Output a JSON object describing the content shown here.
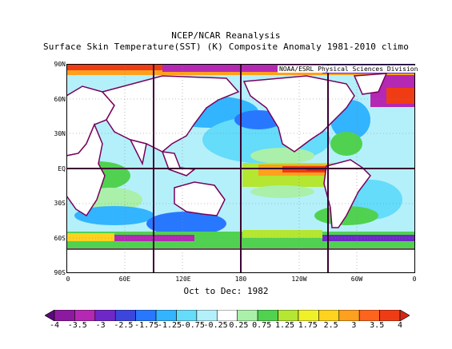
{
  "title_line1": "NCEP/NCAR Reanalysis",
  "title_line2": "Surface Skin Temperature(SST) (K) Composite Anomaly 1981-2010 climo",
  "credit": "NOAA/ESRL Physical Sciences Division",
  "period": "Oct to Dec: 1982",
  "lat_labels": [
    "90N",
    "60N",
    "30N",
    "EQ",
    "30S",
    "60S",
    "90S"
  ],
  "lon_labels": [
    "0",
    "60E",
    "120E",
    "180",
    "120W",
    "60W",
    "0"
  ],
  "colorbar": {
    "labels": [
      "-4",
      "-3.5",
      "-3",
      "-2.5",
      "-1.75",
      "-1.25",
      "-0.75",
      "-0.25",
      "0.25",
      "0.75",
      "1.25",
      "1.75",
      "2.5",
      "3",
      "3.5",
      "4"
    ],
    "colors": [
      "#5a0a78",
      "#8c1aa0",
      "#b428b4",
      "#6e28c8",
      "#3c46dc",
      "#2878ff",
      "#32b4ff",
      "#64dcfa",
      "#b4f0fa",
      "#ffffff",
      "#aaf0aa",
      "#50d250",
      "#b4e632",
      "#f0f028",
      "#ffd21e",
      "#ffa01e",
      "#ff641e",
      "#f03c14",
      "#d22814"
    ]
  },
  "map": {
    "projection": "cylindrical-equidistant",
    "lon_range": [
      0,
      360
    ],
    "lat_range": [
      -90,
      90
    ],
    "land_color": "#ffffff",
    "coast_color": "#78005a",
    "grid_color": "#3c0032"
  }
}
